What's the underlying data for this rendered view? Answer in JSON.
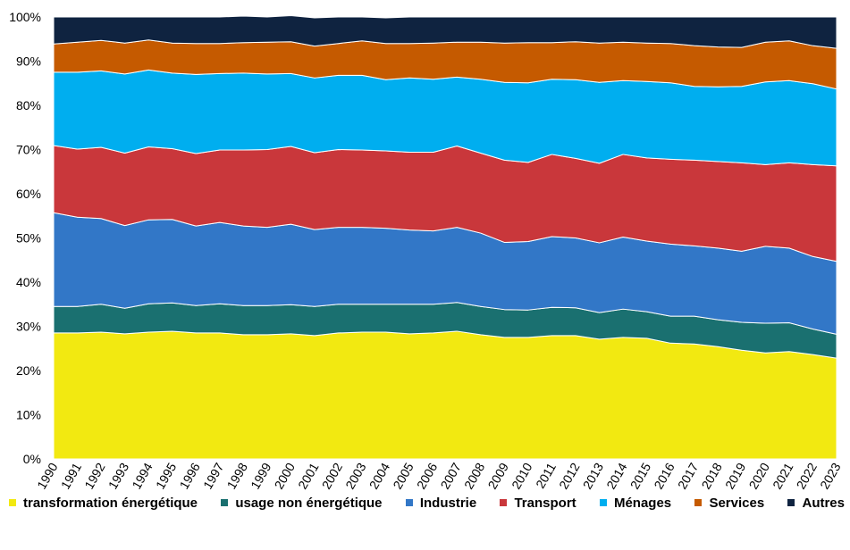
{
  "chart_data": {
    "type": "area",
    "stacked": true,
    "percent": true,
    "ylim": [
      0,
      100
    ],
    "yticks": [
      "0%",
      "10%",
      "20%",
      "30%",
      "40%",
      "50%",
      "60%",
      "70%",
      "80%",
      "90%",
      "100%"
    ],
    "x": [
      "1990",
      "1991",
      "1992",
      "1993",
      "1994",
      "1995",
      "1996",
      "1997",
      "1998",
      "1999",
      "2000",
      "2001",
      "2002",
      "2003",
      "2004",
      "2005",
      "2006",
      "2007",
      "2008",
      "2009",
      "2010",
      "2011",
      "2012",
      "2013",
      "2014",
      "2015",
      "2016",
      "2017",
      "2018",
      "2019",
      "2020",
      "2021",
      "2022",
      "2023"
    ],
    "series": [
      {
        "name": "transformation énergétique",
        "color": "#f2e911",
        "values": [
          28.5,
          28.5,
          28.7,
          28.3,
          28.7,
          28.9,
          28.5,
          28.5,
          28.1,
          28.1,
          28.3,
          27.9,
          28.5,
          28.7,
          28.7,
          28.3,
          28.5,
          28.9,
          28.1,
          27.5,
          27.5,
          27.9,
          27.9,
          27.1,
          27.5,
          27.3,
          26.2,
          26.0,
          25.4,
          24.6,
          24.0,
          24.3,
          23.6,
          22.8
        ]
      },
      {
        "name": "usage non énergétique",
        "color": "#1a7070",
        "values": [
          6.0,
          6.0,
          6.3,
          5.8,
          6.4,
          6.4,
          6.2,
          6.6,
          6.6,
          6.6,
          6.6,
          6.6,
          6.5,
          6.3,
          6.3,
          6.7,
          6.5,
          6.5,
          6.4,
          6.3,
          6.2,
          6.4,
          6.3,
          6.0,
          6.4,
          6.0,
          6.1,
          6.3,
          6.1,
          6.3,
          6.7,
          6.5,
          5.8,
          5.4
        ]
      },
      {
        "name": "Industrie",
        "color": "#3277c7",
        "values": [
          21.2,
          20.2,
          19.4,
          18.7,
          19.0,
          18.9,
          18.0,
          18.4,
          18.0,
          17.7,
          18.2,
          17.4,
          17.4,
          17.4,
          17.2,
          16.8,
          16.6,
          17.0,
          16.6,
          15.2,
          15.5,
          16.0,
          15.8,
          15.8,
          16.3,
          16.0,
          16.3,
          15.9,
          16.2,
          16.1,
          17.4,
          16.9,
          16.4,
          16.5
        ]
      },
      {
        "name": "Transport",
        "color": "#c9373b",
        "values": [
          15.2,
          15.4,
          16.1,
          16.4,
          16.5,
          16.0,
          16.4,
          16.4,
          17.2,
          17.6,
          17.6,
          17.4,
          17.6,
          17.5,
          17.5,
          17.6,
          17.8,
          18.4,
          18.1,
          18.6,
          17.9,
          18.6,
          18.0,
          18.0,
          18.7,
          18.8,
          19.2,
          19.4,
          19.6,
          20.0,
          18.5,
          19.3,
          20.8,
          21.6
        ]
      },
      {
        "name": "Ménages",
        "color": "#00aeef",
        "values": [
          16.6,
          17.4,
          17.3,
          17.9,
          17.4,
          17.1,
          17.9,
          17.3,
          17.4,
          17.1,
          16.5,
          16.9,
          16.8,
          16.9,
          16.1,
          16.8,
          16.5,
          15.6,
          16.7,
          17.6,
          18.0,
          17.0,
          17.8,
          18.3,
          16.7,
          17.3,
          17.3,
          16.7,
          16.9,
          17.3,
          18.7,
          18.6,
          18.3,
          17.4
        ]
      },
      {
        "name": "Services",
        "color": "#c55a00",
        "values": [
          6.4,
          6.8,
          6.9,
          7.0,
          6.8,
          6.8,
          7.0,
          6.8,
          6.9,
          7.2,
          7.2,
          7.2,
          7.2,
          7.8,
          8.2,
          7.8,
          8.2,
          7.9,
          8.4,
          8.9,
          9.1,
          8.3,
          8.6,
          8.9,
          8.7,
          8.7,
          8.9,
          9.2,
          9.0,
          8.8,
          9.0,
          9.0,
          8.6,
          9.2
        ]
      },
      {
        "name": "Autres",
        "color": "#0f2340",
        "values": [
          6.1,
          5.7,
          5.3,
          5.9,
          5.2,
          5.9,
          6.0,
          6.0,
          6.0,
          5.7,
          5.9,
          6.4,
          6.0,
          5.4,
          5.8,
          6.0,
          5.9,
          5.7,
          5.7,
          5.9,
          5.8,
          5.8,
          5.6,
          5.9,
          5.7,
          5.9,
          6.0,
          6.5,
          6.8,
          6.9,
          5.7,
          5.4,
          6.5,
          7.1
        ]
      }
    ],
    "title": "",
    "xlabel": "",
    "ylabel": "",
    "grid": false,
    "legend_position": "bottom"
  }
}
